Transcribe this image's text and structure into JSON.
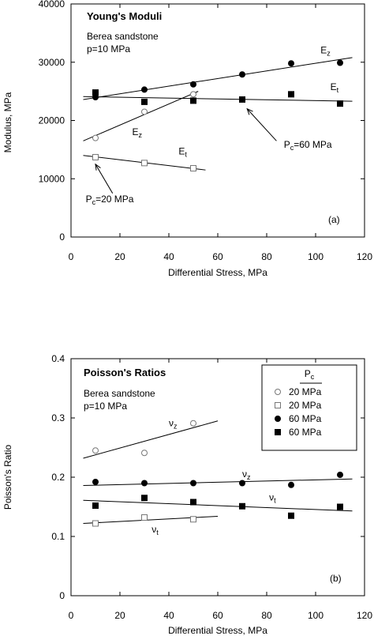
{
  "chart_data": [
    {
      "id": "a",
      "type": "scatter",
      "title": "Young's Moduli",
      "subtitle_lines": [
        "Berea sandstone",
        "p=10 MPa"
      ],
      "xlabel": "Differential Stress, MPa",
      "ylabel": "Modulus, MPa",
      "xlim": [
        0,
        120
      ],
      "ylim": [
        0,
        40000
      ],
      "xticks": [
        0,
        20,
        40,
        60,
        80,
        100,
        120
      ],
      "yticks": [
        0,
        10000,
        20000,
        30000,
        40000
      ],
      "ytick_labels": [
        "0",
        "10000",
        "20000",
        "30000",
        "40000"
      ],
      "panel_label": "(a)",
      "grid": false,
      "series": [
        {
          "marker": "open-circle",
          "points": [
            [
              10,
              17000
            ],
            [
              30,
              21500
            ],
            [
              50,
              24500
            ]
          ]
        },
        {
          "marker": "open-square",
          "points": [
            [
              10,
              13700
            ],
            [
              30,
              12700
            ],
            [
              50,
              11800
            ]
          ]
        },
        {
          "marker": "filled-circle",
          "points": [
            [
              10,
              24000
            ],
            [
              30,
              25300
            ],
            [
              50,
              26200
            ],
            [
              70,
              27900
            ],
            [
              90,
              29800
            ],
            [
              110,
              29900
            ]
          ]
        },
        {
          "marker": "filled-square",
          "points": [
            [
              10,
              24800
            ],
            [
              30,
              23200
            ],
            [
              50,
              23400
            ],
            [
              70,
              23600
            ],
            [
              90,
              24500
            ],
            [
              110,
              22900
            ]
          ]
        }
      ],
      "fit_lines": [
        {
          "x": [
            5,
            52
          ],
          "y": [
            16500,
            25000
          ]
        },
        {
          "x": [
            5,
            55
          ],
          "y": [
            14000,
            11500
          ]
        },
        {
          "x": [
            5,
            115
          ],
          "y": [
            23600,
            30800
          ]
        },
        {
          "x": [
            5,
            115
          ],
          "y": [
            24100,
            23300
          ]
        }
      ],
      "annotations": [
        {
          "base": "E",
          "sub": "z",
          "x": 102,
          "y": 31500
        },
        {
          "base": "E",
          "sub": "t",
          "x": 106,
          "y": 25200
        },
        {
          "base": "E",
          "sub": "z",
          "x": 25,
          "y": 17500
        },
        {
          "base": "E",
          "sub": "t",
          "x": 44,
          "y": 14200
        }
      ],
      "callouts": [
        {
          "base": "P",
          "sub": "c",
          "rest": "=60 MPa",
          "x": 87,
          "y": 15300,
          "tx": 72,
          "ty": 22000,
          "ax": 84,
          "ay": 16500
        },
        {
          "base": "P",
          "sub": "c",
          "rest": "=20 MPa",
          "x": 6,
          "y": 6000,
          "tx": 10,
          "ty": 12500,
          "ax": 17,
          "ay": 7500
        }
      ]
    },
    {
      "id": "b",
      "type": "scatter",
      "title": "Poisson's Ratios",
      "subtitle_lines": [
        "Berea sandstone",
        "p=10 MPa"
      ],
      "xlabel": "Differential Stress, MPa",
      "ylabel": "Poisson's Ratio",
      "xlim": [
        0,
        120
      ],
      "ylim": [
        0,
        0.4
      ],
      "xticks": [
        0,
        20,
        40,
        60,
        80,
        100,
        120
      ],
      "yticks": [
        0,
        0.1,
        0.2,
        0.3,
        0.4
      ],
      "ytick_labels": [
        "0",
        "0.1",
        "0.2",
        "0.3",
        "0.4"
      ],
      "panel_label": "(b)",
      "grid": false,
      "legend": {
        "placement": "top-right",
        "header_base": "P",
        "header_sub": "c"
      },
      "series": [
        {
          "name": "20 MPa",
          "marker": "open-circle",
          "points": [
            [
              10,
              0.245
            ],
            [
              30,
              0.241
            ],
            [
              50,
              0.291
            ]
          ]
        },
        {
          "name": "20 MPa",
          "marker": "open-square",
          "points": [
            [
              10,
              0.122
            ],
            [
              30,
              0.132
            ],
            [
              50,
              0.129
            ]
          ]
        },
        {
          "name": "60 MPa",
          "marker": "filled-circle",
          "points": [
            [
              10,
              0.192
            ],
            [
              30,
              0.19
            ],
            [
              50,
              0.19
            ],
            [
              70,
              0.19
            ],
            [
              90,
              0.187
            ],
            [
              110,
              0.204
            ]
          ]
        },
        {
          "name": "60 MPa",
          "marker": "filled-square",
          "points": [
            [
              10,
              0.152
            ],
            [
              30,
              0.165
            ],
            [
              50,
              0.158
            ],
            [
              70,
              0.151
            ],
            [
              90,
              0.135
            ],
            [
              110,
              0.15
            ]
          ]
        }
      ],
      "fit_lines": [
        {
          "x": [
            5,
            60
          ],
          "y": [
            0.232,
            0.295
          ]
        },
        {
          "x": [
            5,
            60
          ],
          "y": [
            0.122,
            0.134
          ]
        },
        {
          "x": [
            5,
            115
          ],
          "y": [
            0.186,
            0.197
          ]
        },
        {
          "x": [
            5,
            115
          ],
          "y": [
            0.161,
            0.143
          ]
        }
      ],
      "annotations": [
        {
          "base": "ν",
          "sub": "z",
          "x": 40,
          "y": 0.286
        },
        {
          "base": "ν",
          "sub": "z",
          "x": 70,
          "y": 0.2
        },
        {
          "base": "ν",
          "sub": "t",
          "x": 81,
          "y": 0.161
        },
        {
          "base": "ν",
          "sub": "t",
          "x": 33,
          "y": 0.107
        }
      ]
    }
  ]
}
